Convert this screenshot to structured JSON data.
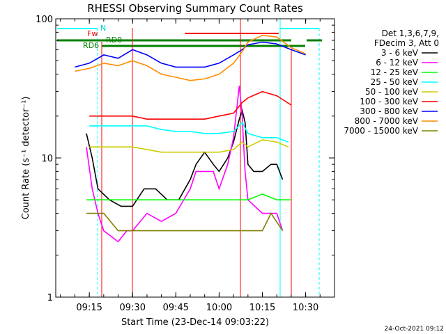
{
  "chart_data": {
    "type": "line",
    "title": "RHESSI Observing Summary Count Rates",
    "xlabel": "Start Time (23-Dec-14 09:03:22)",
    "ylabel": "Count Rate (s⁻¹ detector⁻¹)",
    "y_scale": "log",
    "ylim": [
      1,
      100
    ],
    "xlim": [
      "09:03:22",
      "10:40:00"
    ],
    "x_tick_labels": [
      "09:15",
      "09:30",
      "09:45",
      "10:00",
      "10:15",
      "10:30"
    ],
    "x_ticks": [
      "09:15",
      "09:30",
      "09:45",
      "10:00",
      "10:15",
      "10:30"
    ],
    "y_tick_labels": [
      "1",
      "10",
      "100"
    ],
    "y_ticks": [
      1,
      10,
      100
    ],
    "legend_header": [
      "Det 1,3,6,7,9,",
      "FDecim 3, Att 0"
    ],
    "legend_position": "right",
    "series": [
      {
        "name": "3 - 6 keV",
        "color": "#000000",
        "points": [
          [
            "09:14",
            15
          ],
          [
            "09:16",
            10
          ],
          [
            "09:18",
            6
          ],
          [
            "09:22",
            5
          ],
          [
            "09:26",
            4.5
          ],
          [
            "09:30",
            4.5
          ],
          [
            "09:34",
            6
          ],
          [
            "09:38",
            6
          ],
          [
            "09:42",
            5
          ],
          [
            "09:46",
            5
          ],
          [
            "09:50",
            7
          ],
          [
            "09:52",
            9
          ],
          [
            "09:55",
            11
          ],
          [
            "09:58",
            9
          ],
          [
            "10:00",
            8
          ],
          [
            "10:03",
            10
          ],
          [
            "10:05",
            13
          ],
          [
            "10:07",
            19
          ],
          [
            "10:08",
            22
          ],
          [
            "10:09",
            18
          ],
          [
            "10:10",
            9
          ],
          [
            "10:12",
            8
          ],
          [
            "10:15",
            8
          ],
          [
            "10:18",
            9
          ],
          [
            "10:20",
            9
          ],
          [
            "10:22",
            7
          ]
        ]
      },
      {
        "name": "6 - 12 keV",
        "color": "#ff00ff",
        "points": [
          [
            "09:14",
            12
          ],
          [
            "09:16",
            6
          ],
          [
            "09:18",
            4
          ],
          [
            "09:20",
            3
          ],
          [
            "09:25",
            2.5
          ],
          [
            "09:28",
            3
          ],
          [
            "09:30",
            3
          ],
          [
            "09:35",
            4
          ],
          [
            "09:40",
            3.5
          ],
          [
            "09:45",
            4
          ],
          [
            "09:50",
            6
          ],
          [
            "09:52",
            8
          ],
          [
            "09:55",
            8
          ],
          [
            "09:58",
            8
          ],
          [
            "10:00",
            6
          ],
          [
            "10:03",
            9
          ],
          [
            "10:05",
            14
          ],
          [
            "10:07",
            33
          ],
          [
            "10:08",
            20
          ],
          [
            "10:09",
            8
          ],
          [
            "10:10",
            5
          ],
          [
            "10:15",
            4
          ],
          [
            "10:20",
            4
          ],
          [
            "10:22",
            3
          ]
        ]
      },
      {
        "name": "12 - 25 keV",
        "color": "#00ff00",
        "points": [
          [
            "09:14",
            5
          ],
          [
            "09:20",
            5
          ],
          [
            "09:25",
            5
          ],
          [
            "09:30",
            5
          ],
          [
            "09:40",
            5
          ],
          [
            "09:50",
            5
          ],
          [
            "10:00",
            5
          ],
          [
            "10:10",
            5
          ],
          [
            "10:15",
            5.5
          ],
          [
            "10:20",
            5
          ],
          [
            "10:25",
            5
          ]
        ]
      },
      {
        "name": "25 - 50 keV",
        "color": "#00ffff",
        "points": [
          [
            "09:15",
            17
          ],
          [
            "09:20",
            17
          ],
          [
            "09:25",
            17
          ],
          [
            "09:30",
            17
          ],
          [
            "09:35",
            17
          ],
          [
            "09:40",
            16
          ],
          [
            "09:45",
            15.5
          ],
          [
            "09:50",
            15.5
          ],
          [
            "09:55",
            15
          ],
          [
            "10:00",
            15
          ],
          [
            "10:05",
            15.5
          ],
          [
            "10:08",
            18
          ],
          [
            "10:10",
            15
          ],
          [
            "10:15",
            14
          ],
          [
            "10:20",
            14
          ],
          [
            "10:24",
            13
          ]
        ]
      },
      {
        "name": "50 - 100 keV",
        "color": "#cccc00",
        "points": [
          [
            "09:15",
            12
          ],
          [
            "09:20",
            12
          ],
          [
            "09:25",
            12
          ],
          [
            "09:30",
            12
          ],
          [
            "09:35",
            11.5
          ],
          [
            "09:40",
            11
          ],
          [
            "09:45",
            11
          ],
          [
            "09:50",
            11
          ],
          [
            "09:55",
            11
          ],
          [
            "10:00",
            11
          ],
          [
            "10:05",
            11.5
          ],
          [
            "10:08",
            13
          ],
          [
            "10:10",
            12
          ],
          [
            "10:15",
            13.5
          ],
          [
            "10:20",
            13
          ],
          [
            "10:24",
            12
          ]
        ]
      },
      {
        "name": "100 - 300 keV",
        "color": "#ff0000",
        "points": [
          [
            "09:15",
            20
          ],
          [
            "09:20",
            20
          ],
          [
            "09:25",
            20
          ],
          [
            "09:30",
            20
          ],
          [
            "09:35",
            19
          ],
          [
            "09:40",
            19
          ],
          [
            "09:45",
            19
          ],
          [
            "09:50",
            19
          ],
          [
            "09:55",
            19
          ],
          [
            "10:00",
            20
          ],
          [
            "10:05",
            21
          ],
          [
            "10:08",
            25
          ],
          [
            "10:10",
            27
          ],
          [
            "10:15",
            30
          ],
          [
            "10:20",
            28
          ],
          [
            "10:25",
            24
          ]
        ]
      },
      {
        "name": "300 - 800 keV",
        "color": "#0000ff",
        "points": [
          [
            "09:10",
            45
          ],
          [
            "09:15",
            48
          ],
          [
            "09:20",
            55
          ],
          [
            "09:25",
            52
          ],
          [
            "09:30",
            60
          ],
          [
            "09:35",
            55
          ],
          [
            "09:40",
            48
          ],
          [
            "09:45",
            45
          ],
          [
            "09:50",
            45
          ],
          [
            "09:55",
            45
          ],
          [
            "10:00",
            48
          ],
          [
            "10:05",
            55
          ],
          [
            "10:08",
            60
          ],
          [
            "10:10",
            65
          ],
          [
            "10:15",
            68
          ],
          [
            "10:20",
            66
          ],
          [
            "10:25",
            60
          ],
          [
            "10:30",
            55
          ]
        ]
      },
      {
        "name": "800 - 7000 keV",
        "color": "#ff8c00",
        "points": [
          [
            "09:10",
            42
          ],
          [
            "09:15",
            44
          ],
          [
            "09:20",
            48
          ],
          [
            "09:25",
            46
          ],
          [
            "09:30",
            50
          ],
          [
            "09:35",
            46
          ],
          [
            "09:40",
            40
          ],
          [
            "09:45",
            38
          ],
          [
            "09:50",
            36
          ],
          [
            "09:55",
            37
          ],
          [
            "10:00",
            40
          ],
          [
            "10:05",
            48
          ],
          [
            "10:08",
            58
          ],
          [
            "10:10",
            68
          ],
          [
            "10:15",
            76
          ],
          [
            "10:20",
            74
          ],
          [
            "10:25",
            62
          ],
          [
            "10:30",
            56
          ]
        ]
      },
      {
        "name": "7000 - 15000 keV",
        "color": "#808000",
        "points": [
          [
            "09:14",
            4
          ],
          [
            "09:20",
            4
          ],
          [
            "09:25",
            3
          ],
          [
            "09:30",
            3
          ],
          [
            "09:35",
            3
          ],
          [
            "09:40",
            3
          ],
          [
            "09:45",
            3
          ],
          [
            "09:50",
            3
          ],
          [
            "09:55",
            3
          ],
          [
            "10:00",
            3
          ],
          [
            "10:05",
            3
          ],
          [
            "10:10",
            3
          ],
          [
            "10:15",
            3
          ],
          [
            "10:18",
            4
          ],
          [
            "10:22",
            3
          ]
        ]
      }
    ],
    "annotations": {
      "rd0_label": "RD0",
      "rd6_label": "RD6",
      "n_label": "N",
      "fw_label": "Fw"
    }
  },
  "footer": {
    "timestamp": "24-Oct-2021 09:12"
  }
}
